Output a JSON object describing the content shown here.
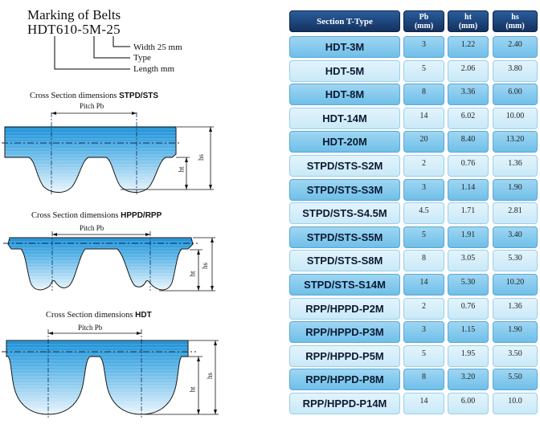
{
  "marking": {
    "title": "Marking of Belts",
    "code": "HDT610-5M-25",
    "width_label": "Width 25 mm",
    "type_label": "Type",
    "length_label": "Length mm"
  },
  "sections": [
    {
      "title_prefix": "Cross Section dimensions ",
      "title_bold": "STPD/STS",
      "pitch_label": "Pitch Pb",
      "ht_label": "ht",
      "hs_label": "hs"
    },
    {
      "title_prefix": "Cross Section dimensions ",
      "title_bold": "HPPD/RPP",
      "pitch_label": "Pitch Pb",
      "ht_label": "ht",
      "hs_label": "hs"
    },
    {
      "title_prefix": "Cross Section dimensions ",
      "title_bold": "HDT",
      "pitch_label": "Pitch Pb",
      "ht_label": "ht",
      "hs_label": "hs"
    }
  ],
  "colors": {
    "belt_dark": "#1a8fd6",
    "belt_light": "#eaf6fd",
    "header_dark": "#13315f",
    "row_dark": "#6fbfe9",
    "row_light": "#c9e9f8"
  },
  "table": {
    "headers": {
      "type": "Section T-Type",
      "pb": [
        "Pb",
        "(mm)"
      ],
      "ht": [
        "ht",
        "(mm)"
      ],
      "hs": [
        "hs",
        "(mm)"
      ]
    },
    "rows": [
      {
        "type": "HDT-3M",
        "pb": "3",
        "ht": "1.22",
        "hs": "2.40"
      },
      {
        "type": "HDT-5M",
        "pb": "5",
        "ht": "2.06",
        "hs": "3.80"
      },
      {
        "type": "HDT-8M",
        "pb": "8",
        "ht": "3.36",
        "hs": "6.00"
      },
      {
        "type": "HDT-14M",
        "pb": "14",
        "ht": "6.02",
        "hs": "10.00"
      },
      {
        "type": "HDT-20M",
        "pb": "20",
        "ht": "8.40",
        "hs": "13.20"
      },
      {
        "type": "STPD/STS-S2M",
        "pb": "2",
        "ht": "0.76",
        "hs": "1.36"
      },
      {
        "type": "STPD/STS-S3M",
        "pb": "3",
        "ht": "1.14",
        "hs": "1.90"
      },
      {
        "type": "STPD/STS-S4.5M",
        "pb": "4.5",
        "ht": "1.71",
        "hs": "2.81"
      },
      {
        "type": "STPD/STS-S5M",
        "pb": "5",
        "ht": "1.91",
        "hs": "3.40"
      },
      {
        "type": "STPD/STS-S8M",
        "pb": "8",
        "ht": "3.05",
        "hs": "5.30"
      },
      {
        "type": "STPD/STS-S14M",
        "pb": "14",
        "ht": "5.30",
        "hs": "10.20"
      },
      {
        "type": "RPP/HPPD-P2M",
        "pb": "2",
        "ht": "0.76",
        "hs": "1.36"
      },
      {
        "type": "RPP/HPPD-P3M",
        "pb": "3",
        "ht": "1.15",
        "hs": "1.90"
      },
      {
        "type": "RPP/HPPD-P5M",
        "pb": "5",
        "ht": "1.95",
        "hs": "3.50"
      },
      {
        "type": "RPP/HPPD-P8M",
        "pb": "8",
        "ht": "3.20",
        "hs": "5.50"
      },
      {
        "type": "RPP/HPPD-P14M",
        "pb": "14",
        "ht": "6.00",
        "hs": "10.0"
      }
    ]
  }
}
